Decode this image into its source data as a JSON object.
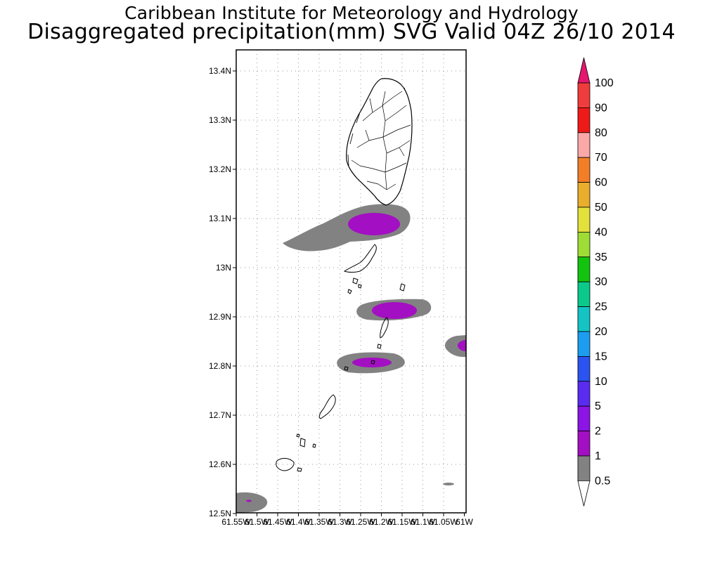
{
  "title": {
    "line1": "Caribbean Institute for Meteorology and Hydrology",
    "line2": "Disaggregated precipitation(mm) SVG Valid 04Z 26/10 2014"
  },
  "map": {
    "y_ticks": [
      "13.4N",
      "13.3N",
      "13.2N",
      "13.1N",
      "13N",
      "12.9N",
      "12.8N",
      "12.7N",
      "12.6N",
      "12.5N"
    ],
    "x_ticks": [
      "61.55W",
      "61.5W",
      "61.45W",
      "61.4W",
      "61.35W",
      "61.3W",
      "61.25W",
      "61.2W",
      "61.15W",
      "61.1W",
      "61.05W",
      "61W"
    ],
    "lat_range": [
      12.5,
      13.44
    ],
    "lon_range": [
      -61.55,
      -61.0
    ],
    "grid": "dotted"
  },
  "colorbar": {
    "labels": [
      "100",
      "90",
      "80",
      "70",
      "60",
      "50",
      "40",
      "35",
      "30",
      "25",
      "20",
      "15",
      "10",
      "5",
      "2",
      "1",
      "0.5"
    ],
    "colors": [
      "#e5166f",
      "#f03c3c",
      "#ee1a1a",
      "#faa8a8",
      "#f37e28",
      "#e8ae2c",
      "#e4e03c",
      "#9fdc36",
      "#13c40f",
      "#0bc98a",
      "#14c4c4",
      "#1c9df0",
      "#2b53ef",
      "#5a2bf0",
      "#8c14e5",
      "#a30fc2",
      "#828282"
    ],
    "under_color": "#ffffff"
  }
}
